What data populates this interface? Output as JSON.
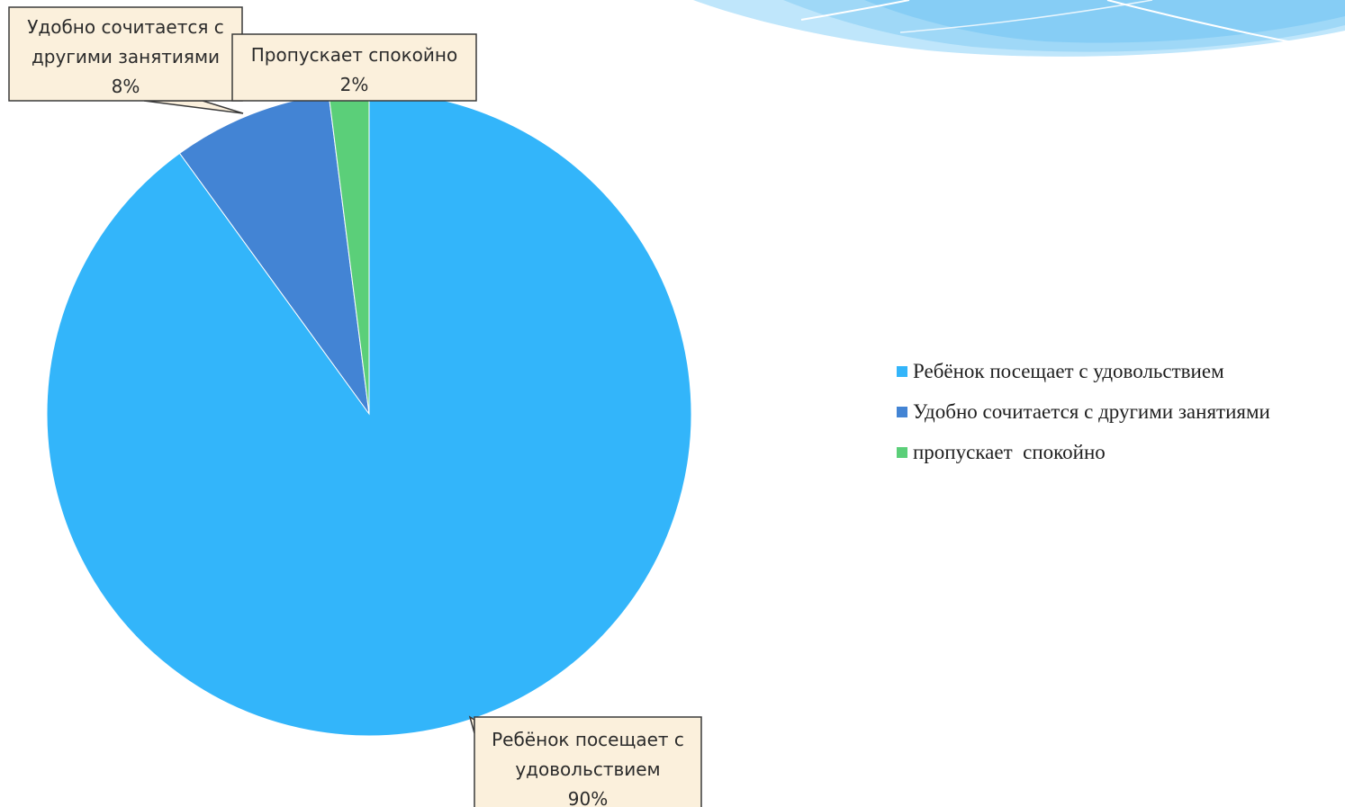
{
  "chart_data": {
    "type": "pie",
    "title": "",
    "categories": [
      "Ребёнок посещает с удовольствием",
      "Удобно сочитается с другими занятиями",
      "пропускает спокойно"
    ],
    "values": [
      90,
      8,
      2
    ],
    "colors": [
      "#33b5fa",
      "#4384d4",
      "#5bcf79"
    ],
    "data_labels": [
      {
        "lines": [
          "Ребёнок посещает с",
          "удовольствием",
          "90%"
        ]
      },
      {
        "lines": [
          "Удобно сочитается с",
          "другими занятиями",
          "8%"
        ]
      },
      {
        "lines": [
          "Пропускает спокойно",
          "2%"
        ]
      }
    ],
    "legend": {
      "position": "right",
      "items": [
        "Ребёнок посещает с удовольствием",
        "Удобно сочитается с другими занятиями",
        "пропускает  спокойно"
      ]
    }
  }
}
